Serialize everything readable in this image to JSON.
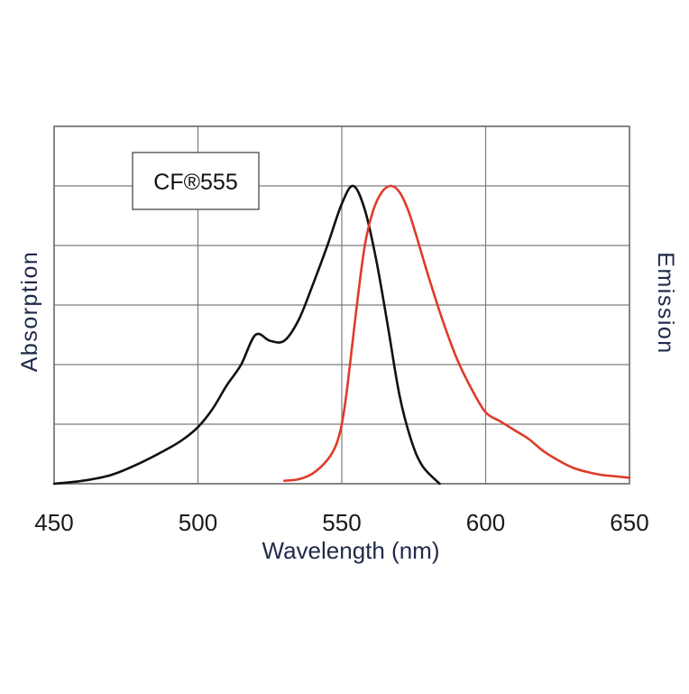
{
  "chart_data": {
    "type": "line",
    "xlabel": "Wavelength (nm)",
    "ylabel_left": "Absorption",
    "ylabel_right": "Emission",
    "annotation": "CF®555",
    "xlim": [
      450,
      650
    ],
    "ylim": [
      0,
      1.2
    ],
    "x_ticks": [
      "450",
      "500",
      "550",
      "600",
      "650"
    ],
    "grid": true,
    "series": [
      {
        "key": "absorption",
        "color": "#111111",
        "points": [
          [
            450,
            0.0
          ],
          [
            460,
            0.01
          ],
          [
            470,
            0.03
          ],
          [
            480,
            0.07
          ],
          [
            490,
            0.12
          ],
          [
            495,
            0.15
          ],
          [
            500,
            0.19
          ],
          [
            505,
            0.25
          ],
          [
            510,
            0.33
          ],
          [
            515,
            0.4
          ],
          [
            520,
            0.5
          ],
          [
            525,
            0.48
          ],
          [
            530,
            0.48
          ],
          [
            535,
            0.55
          ],
          [
            540,
            0.67
          ],
          [
            545,
            0.8
          ],
          [
            550,
            0.94
          ],
          [
            554,
            1.0
          ],
          [
            558,
            0.92
          ],
          [
            562,
            0.75
          ],
          [
            566,
            0.53
          ],
          [
            570,
            0.3
          ],
          [
            574,
            0.15
          ],
          [
            578,
            0.06
          ],
          [
            584,
            0.0
          ]
        ]
      },
      {
        "key": "emission",
        "color": "#e03a2a",
        "points": [
          [
            530,
            0.01
          ],
          [
            535,
            0.015
          ],
          [
            540,
            0.035
          ],
          [
            545,
            0.08
          ],
          [
            548,
            0.13
          ],
          [
            550,
            0.2
          ],
          [
            552,
            0.33
          ],
          [
            555,
            0.58
          ],
          [
            558,
            0.8
          ],
          [
            561,
            0.92
          ],
          [
            564,
            0.98
          ],
          [
            567,
            1.0
          ],
          [
            570,
            0.98
          ],
          [
            573,
            0.92
          ],
          [
            576,
            0.83
          ],
          [
            580,
            0.7
          ],
          [
            585,
            0.55
          ],
          [
            590,
            0.42
          ],
          [
            595,
            0.32
          ],
          [
            600,
            0.24
          ],
          [
            605,
            0.21
          ],
          [
            610,
            0.18
          ],
          [
            615,
            0.15
          ],
          [
            620,
            0.11
          ],
          [
            625,
            0.08
          ],
          [
            630,
            0.055
          ],
          [
            635,
            0.04
          ],
          [
            640,
            0.03
          ],
          [
            645,
            0.025
          ],
          [
            650,
            0.02
          ]
        ]
      }
    ]
  }
}
